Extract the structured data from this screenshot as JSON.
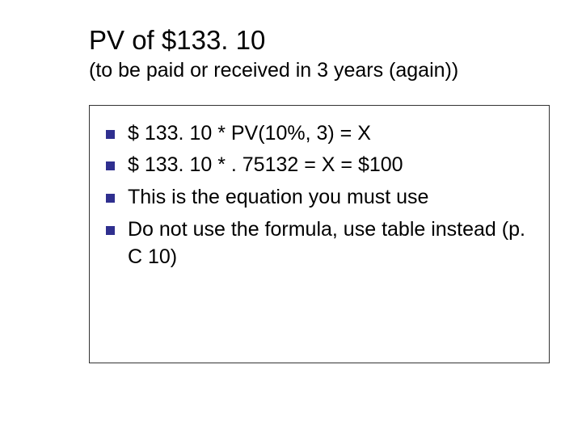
{
  "slide": {
    "title": "PV of $133. 10",
    "subtitle": "(to be paid or received in 3 years (again))",
    "title_fontsize": 33,
    "subtitle_fontsize": 25,
    "text_color": "#000000",
    "background_color": "#ffffff"
  },
  "content": {
    "box_border_color": "#333333",
    "bullet_color": "#2f2f8f",
    "bullet_size": 11,
    "body_fontsize": 25,
    "items": [
      "$ 133. 10 * PV(10%, 3) = X",
      "$ 133. 10 * . 75132 = X = $100",
      "This is the equation you must use",
      "Do not use the formula, use table instead (p. C 10)"
    ]
  }
}
